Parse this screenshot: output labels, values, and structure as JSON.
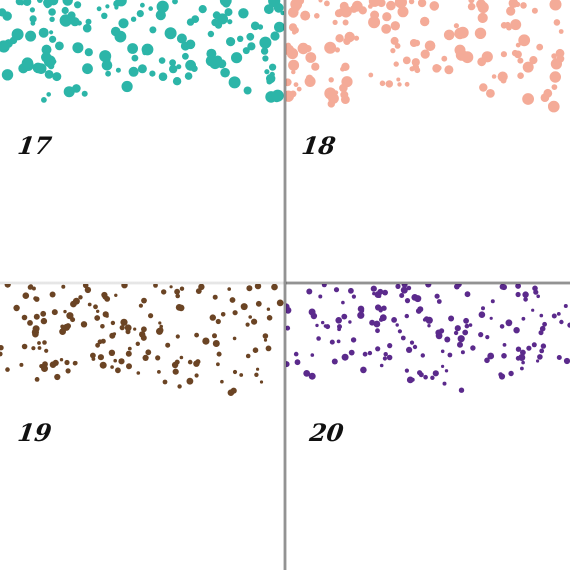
{
  "panels": [
    {
      "id": "p17",
      "number": "17",
      "color": "#2cb5a8",
      "style": "large-scatter"
    },
    {
      "id": "p18",
      "number": "18",
      "color": "#f4ab98",
      "style": "large-scatter"
    },
    {
      "id": "p19",
      "number": "19",
      "color": "#6b4424",
      "style": "small-scatter"
    },
    {
      "id": "p20",
      "number": "20",
      "color": "#5b2a8c",
      "style": "small-scatter"
    }
  ]
}
